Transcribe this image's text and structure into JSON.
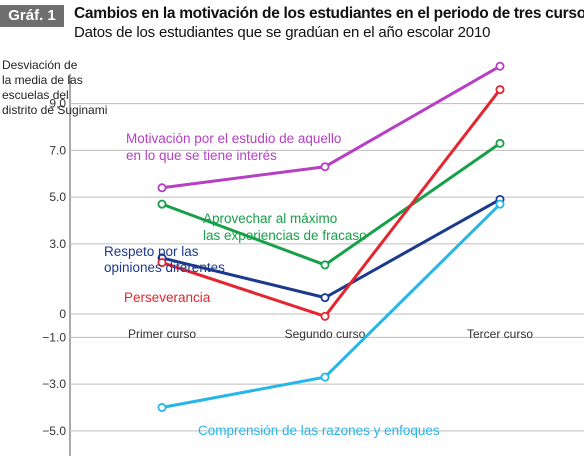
{
  "header": {
    "badge": "Gráf. 1",
    "title": "Cambios en la motivación de los estudiantes en el periodo de tres cursos",
    "subtitle": "Datos de los estudiantes que se gradúan en el año escolar 2010"
  },
  "chart_data": {
    "type": "line",
    "title": "Cambios en la motivación de los estudiantes en el periodo de tres cursos",
    "subtitle": "Datos de los estudiantes que se gradúan en el año escolar 2010",
    "ylabel_lines": [
      "Desviación de",
      "la media de las",
      "escuelas del",
      "distrito de Suginami"
    ],
    "categories": [
      "Primer curso",
      "Segundo curso",
      "Tercer curso"
    ],
    "ylim": [
      -5.0,
      11.0
    ],
    "yticks": [
      -5.0,
      -3.0,
      -1.0,
      0,
      3.0,
      5.0,
      7.0,
      9.0
    ],
    "ytick_labels": [
      "−5.0",
      "−3.0",
      "−1.0",
      "0",
      "3.0",
      "5.0",
      "7.0",
      "9.0"
    ],
    "grid": "horizontal",
    "series": [
      {
        "name": "Motivación por el estudio de aquello en lo que se tiene interés",
        "label_lines": [
          "Motivación por el estudio de aquello",
          "en lo que se tiene interés"
        ],
        "color": "#b63fc4",
        "values": [
          5.4,
          6.3,
          10.6
        ]
      },
      {
        "name": "Aprovechar al máximo las experiencias de fracaso",
        "label_lines": [
          "Aprovechar al máximo",
          "las experiencias de fracaso"
        ],
        "color": "#16a047",
        "values": [
          4.7,
          2.1,
          7.3
        ]
      },
      {
        "name": "Respeto por las opiniones diferentes",
        "label_lines": [
          "Respeto por las",
          "opiniones diferentes"
        ],
        "color": "#1c3a8c",
        "values": [
          2.4,
          0.7,
          4.9
        ]
      },
      {
        "name": "Perseverancia",
        "label_lines": [
          "Perseverancia"
        ],
        "color": "#e3262f",
        "values": [
          2.2,
          -0.1,
          9.6
        ]
      },
      {
        "name": "Comprensión de las razones y enfoques",
        "label_lines": [
          "Comprensión de las razones y enfoques"
        ],
        "color": "#26b6e8",
        "values": [
          -4.0,
          -2.7,
          4.7
        ]
      }
    ]
  }
}
